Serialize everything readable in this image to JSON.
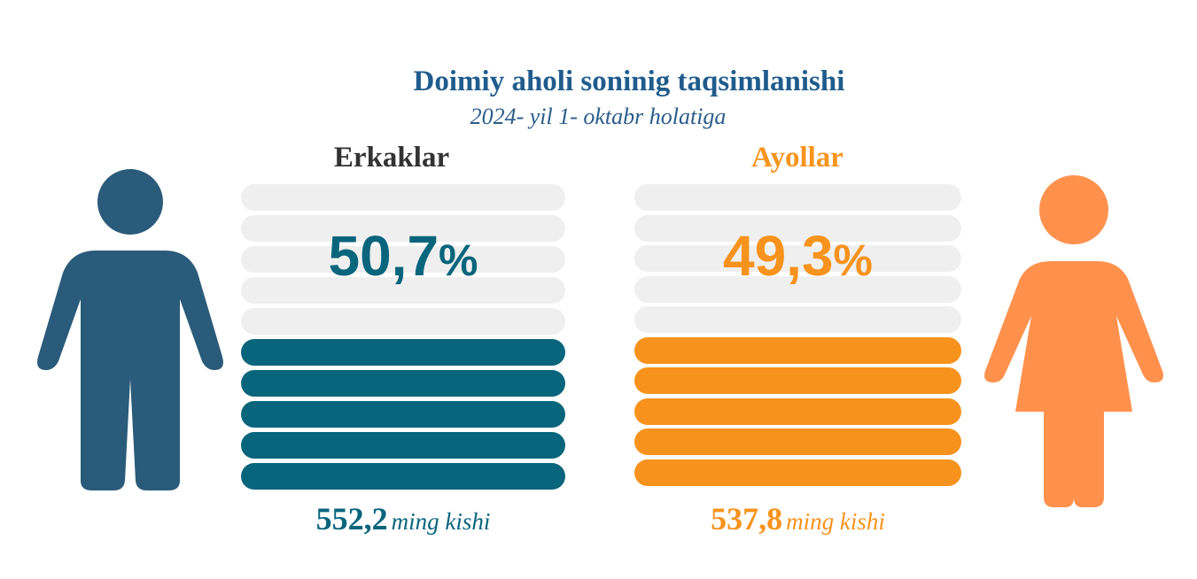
{
  "title": "Doimiy aholi soninig taqsimlanishi",
  "subtitle": "2024- yil 1- oktabr holatiga",
  "colors": {
    "men": "#08657c",
    "women": "#f7931d",
    "men_icon": "#2a5b7a",
    "women_icon": "#ff914d",
    "empty_stripe": "#efefef"
  },
  "chart_data": {
    "type": "bar",
    "categories": [
      "Erkaklar",
      "Ayollar"
    ],
    "values": [
      50.7,
      49.3
    ],
    "value_labels": [
      "50,7",
      "49,3"
    ],
    "unit": "%",
    "counts": [
      "552,2",
      "537,8"
    ],
    "count_unit": "ming kishi"
  },
  "men": {
    "label": "Erkaklar",
    "percent_text": "50,7",
    "percent_sign": "%",
    "count": "552,2",
    "count_unit": "ming kishi",
    "icon": "man-icon"
  },
  "women": {
    "label": "Ayollar",
    "percent_text": "49,3",
    "percent_sign": "%",
    "count": "537,8",
    "count_unit": "ming kishi",
    "icon": "woman-icon"
  }
}
